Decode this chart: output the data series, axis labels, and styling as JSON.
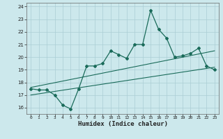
{
  "title": "",
  "xlabel": "Humidex (Indice chaleur)",
  "bg_color": "#cce8ec",
  "line_color": "#1a6b5a",
  "grid_color": "#aacdd4",
  "xlim": [
    -0.5,
    23.5
  ],
  "ylim": [
    15.5,
    24.3
  ],
  "yticks": [
    16,
    17,
    18,
    19,
    20,
    21,
    22,
    23,
    24
  ],
  "xticks": [
    0,
    1,
    2,
    3,
    4,
    5,
    6,
    7,
    8,
    9,
    10,
    11,
    12,
    13,
    14,
    15,
    16,
    17,
    18,
    19,
    20,
    21,
    22,
    23
  ],
  "main_x": [
    0,
    1,
    2,
    3,
    4,
    5,
    6,
    7,
    8,
    9,
    10,
    11,
    12,
    13,
    14,
    15,
    16,
    17,
    18,
    19,
    20,
    21,
    22,
    23
  ],
  "main_y": [
    17.5,
    17.4,
    17.4,
    17.0,
    16.2,
    15.9,
    17.5,
    19.3,
    19.3,
    19.5,
    20.5,
    20.2,
    19.9,
    21.0,
    21.0,
    23.7,
    22.2,
    21.5,
    20.0,
    20.1,
    20.3,
    20.7,
    19.3,
    19.0
  ],
  "trend1_x": [
    0,
    23
  ],
  "trend1_y": [
    17.6,
    20.5
  ],
  "trend2_x": [
    0,
    23
  ],
  "trend2_y": [
    17.0,
    19.2
  ]
}
